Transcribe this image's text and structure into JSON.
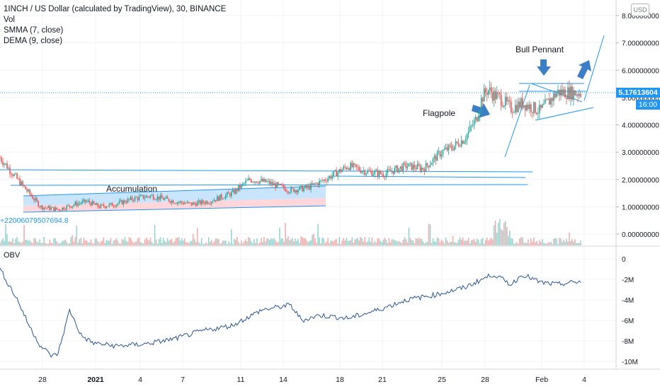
{
  "legend": {
    "title": "1INCH / US Dollar (calculated by TradingView), 30, BINANCE",
    "vol": "Vol",
    "smma": "SMMA (7, close)",
    "dema": "DEMA (9, close)"
  },
  "currency": "USD",
  "price_tag": "5.17613604",
  "time_tag": "16:00",
  "vol_tag": "+22006079507694.8",
  "obv_label": "OBV",
  "annotations": {
    "accumulation": "Accumulation",
    "flagpole": "Flagpole",
    "bull_pennant": "Bull Pennant"
  },
  "colors": {
    "line": "#2962ff",
    "up": "#26a69a",
    "down": "#ef5350",
    "drawing": "#2196f3",
    "accent_fill": "#bbdefb",
    "red_fill": "#ffcdd2",
    "obv": "#2a5599"
  },
  "chart_data": [
    {
      "type": "line",
      "title": "1INCH / US Dollar (calculated by TradingView), 30, BINANCE",
      "x_ticks": [
        "28",
        "2021",
        "4",
        "7",
        "11",
        "14",
        "18",
        "21",
        "25",
        "28",
        "Feb",
        "4"
      ],
      "y_ticks": [
        "8.00000000",
        "7.00000000",
        "6.00000000",
        "5.00000000",
        "4.00000000",
        "3.00000000",
        "2.00000000",
        "1.00000000",
        "0.00000000"
      ],
      "ylim": [
        -0.3,
        8.5
      ],
      "x": [
        0,
        3,
        5,
        7,
        10,
        13,
        15,
        17,
        20,
        23,
        26,
        30,
        33,
        36,
        40,
        43,
        46,
        50,
        53,
        56,
        60,
        63,
        66,
        70,
        73,
        76,
        78,
        80,
        82,
        83,
        84,
        85,
        86,
        88,
        90,
        93,
        96,
        100
      ],
      "series": [
        {
          "name": "1INCH / US Dollar",
          "values": [
            2.8,
            2.0,
            1.5,
            1.0,
            0.9,
            1.1,
            1.2,
            1.0,
            1.1,
            1.3,
            1.4,
            1.2,
            1.1,
            1.2,
            1.5,
            2.0,
            1.9,
            1.6,
            1.7,
            2.0,
            2.5,
            2.3,
            2.2,
            2.5,
            2.4,
            3.0,
            3.2,
            3.5,
            4.2,
            5.0,
            5.3,
            5.1,
            5.0,
            4.6,
            4.8,
            4.5,
            5.2,
            5.17
          ]
        }
      ],
      "last_price": 5.17613604
    },
    {
      "type": "line",
      "title": "OBV",
      "y_ticks": [
        "0",
        "-2M",
        "-4M",
        "-6M",
        "-8M",
        "-10M"
      ],
      "ylim": [
        -10.6,
        0.5
      ],
      "x": [
        0,
        3,
        5,
        7,
        9,
        10,
        12,
        14,
        16,
        20,
        25,
        30,
        35,
        40,
        45,
        50,
        52,
        55,
        60,
        65,
        70,
        75,
        80,
        83,
        85,
        88,
        90,
        93,
        96,
        100
      ],
      "series": [
        {
          "name": "OBV",
          "values": [
            -1.0,
            -4.0,
            -6.5,
            -8.5,
            -9.5,
            -9.2,
            -5.0,
            -7.5,
            -8.2,
            -8.5,
            -8.3,
            -7.8,
            -7.0,
            -6.5,
            -5.0,
            -4.5,
            -6.0,
            -5.5,
            -5.8,
            -5.0,
            -4.0,
            -3.5,
            -2.8,
            -2.0,
            -1.5,
            -2.5,
            -1.5,
            -2.3,
            -2.5,
            -2.2
          ]
        }
      ]
    }
  ]
}
